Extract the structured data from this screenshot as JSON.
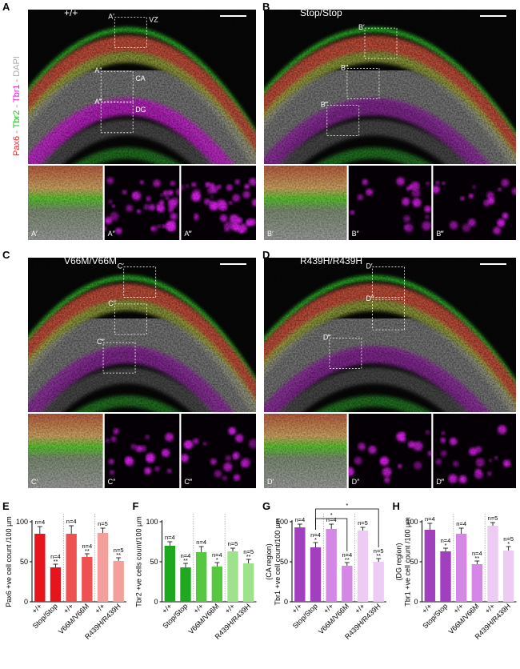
{
  "stain": [
    "Pax6",
    " - ",
    "Tbr2",
    " - ",
    "Tbr1",
    " - ",
    "DAPI"
  ],
  "regions": [
    "VZ",
    "CA",
    "DG"
  ],
  "panels": [
    {
      "letter": "A",
      "genotype": "+/+",
      "insets": [
        "A′",
        "A″",
        "A‴"
      ]
    },
    {
      "letter": "B",
      "genotype": "Stop/Stop",
      "insets": [
        "B′",
        "B″",
        "B‴"
      ]
    },
    {
      "letter": "C",
      "genotype": "V66M/V66M",
      "insets": [
        "C′",
        "C″",
        "C‴"
      ]
    },
    {
      "letter": "D",
      "genotype": "R439H/R439H",
      "insets": [
        "D′",
        "D″",
        "D‴"
      ]
    }
  ],
  "chart_data": [
    {
      "type": "bar",
      "panel": "E",
      "ylabel": [
        "Pax6 +ve cell count /100 µm"
      ],
      "categories": [
        "+/+",
        "Stop/Stop",
        "+/+",
        "V66M/V66M",
        "+/+",
        "R439H/R439H"
      ],
      "values": [
        85,
        43,
        85,
        56,
        86,
        51
      ],
      "errors": [
        9,
        4,
        10,
        4,
        6,
        4
      ],
      "colors": [
        "#e8141c",
        "#e8141c",
        "#ef5050",
        "#ef5050",
        "#f3a09c",
        "#f3a09c"
      ],
      "n_labels": [
        "n=4",
        "n=4",
        "n=4",
        "n=4",
        "n=5",
        "n=5"
      ],
      "sig_labels": [
        null,
        "**",
        null,
        "**",
        null,
        "**"
      ],
      "ylim": [
        0,
        100
      ],
      "yticks": [
        0,
        50,
        100
      ]
    },
    {
      "type": "bar",
      "panel": "F",
      "ylabel": [
        "Tbr2 +ve cells count/100 µm"
      ],
      "categories": [
        "+/+",
        "Stop/Stop",
        "+/+",
        "V66M/V66M",
        "+/+",
        "R439H/R439H"
      ],
      "values": [
        70,
        43,
        62,
        44,
        63,
        48
      ],
      "errors": [
        5,
        5,
        7,
        5,
        4,
        5
      ],
      "colors": [
        "#1fa81f",
        "#1fa81f",
        "#55c83f",
        "#55c83f",
        "#9fe28c",
        "#9fe28c"
      ],
      "n_labels": [
        "n=4",
        "n=4",
        "n=4",
        "n=4",
        "n=5",
        "n=5"
      ],
      "sig_labels": [
        null,
        "**",
        null,
        "*",
        null,
        "**"
      ],
      "ylim": [
        0,
        100
      ],
      "yticks": [
        0,
        50,
        100
      ]
    },
    {
      "type": "bar",
      "panel": "G",
      "ylabel": [
        "Tbr1 +ve cell count/100 µm",
        "(CA region)"
      ],
      "categories": [
        "+/+",
        "Stop/Stop",
        "+/+",
        "V66M/V66M",
        "+/+",
        "R439H/R439H"
      ],
      "values": [
        93,
        68,
        91,
        45,
        89,
        50
      ],
      "errors": [
        4,
        6,
        6,
        4,
        4,
        4
      ],
      "colors": [
        "#a23fbf",
        "#a23fbf",
        "#d487e4",
        "#d487e4",
        "#eecbf4",
        "#eecbf4"
      ],
      "n_labels": [
        "n=4",
        "n=4",
        "n=4",
        "n=4",
        "n=5",
        "n=5"
      ],
      "sig_labels": [
        null,
        "*",
        null,
        "**",
        null,
        "**"
      ],
      "brackets": [
        {
          "label": "*",
          "from": 1,
          "to": 5
        },
        {
          "label": "*",
          "from": 1,
          "to": 3
        }
      ],
      "ylim": [
        0,
        100
      ],
      "yticks": [
        0,
        50,
        100
      ]
    },
    {
      "type": "bar",
      "panel": "H",
      "ylabel": [
        "Tbr1 +ve cell count /100 µm",
        "(DG  region)"
      ],
      "categories": [
        "+/+",
        "Stop/Stop",
        "+/+",
        "V66M/V66M",
        "+/+",
        "R439H/R439H"
      ],
      "values": [
        90,
        63,
        85,
        47,
        95,
        64
      ],
      "errors": [
        8,
        4,
        7,
        4,
        4,
        5
      ],
      "colors": [
        "#a23fbf",
        "#a23fbf",
        "#d487e4",
        "#d487e4",
        "#eecbf4",
        "#eecbf4"
      ],
      "n_labels": [
        "n=4",
        "n=4",
        "n=4",
        "n=4",
        "n=5",
        "n=5"
      ],
      "sig_labels": [
        null,
        "*",
        null,
        "**",
        null,
        "*"
      ],
      "ylim": [
        0,
        100
      ],
      "yticks": [
        0,
        50,
        100
      ]
    }
  ]
}
